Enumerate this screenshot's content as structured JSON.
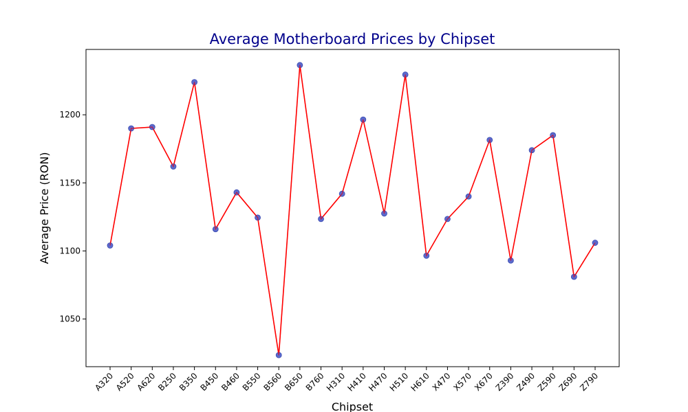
{
  "chart_data": {
    "type": "line",
    "title": "Average Motherboard Prices by Chipset",
    "xlabel": "Chipset",
    "ylabel": "Average Price (RON)",
    "categories": [
      "A320",
      "A520",
      "A620",
      "B250",
      "B350",
      "B450",
      "B460",
      "B550",
      "B560",
      "B650",
      "B760",
      "H310",
      "H410",
      "H470",
      "H510",
      "H610",
      "X470",
      "X570",
      "X670",
      "Z390",
      "Z490",
      "Z590",
      "Z690",
      "Z790"
    ],
    "series": [
      {
        "values": [
          1104,
          1190,
          1191,
          1162,
          1224,
          1116,
          1143,
          1124.5,
          1023.5,
          1236.5,
          1123.5,
          1142,
          1196.5,
          1127.5,
          1229.5,
          1096.5,
          1123.5,
          1140,
          1181.5,
          1093,
          1174,
          1185,
          1081,
          1106
        ]
      }
    ],
    "ylim": [
      1015,
      1248
    ],
    "yticks": [
      1050,
      1100,
      1150,
      1200
    ],
    "grid": false,
    "colors": {
      "line": "#ff0000",
      "marker_fill": "#4a5ac8",
      "marker_edge": "#3a4ab0",
      "title": "#00008b",
      "axes": "#000000"
    }
  }
}
